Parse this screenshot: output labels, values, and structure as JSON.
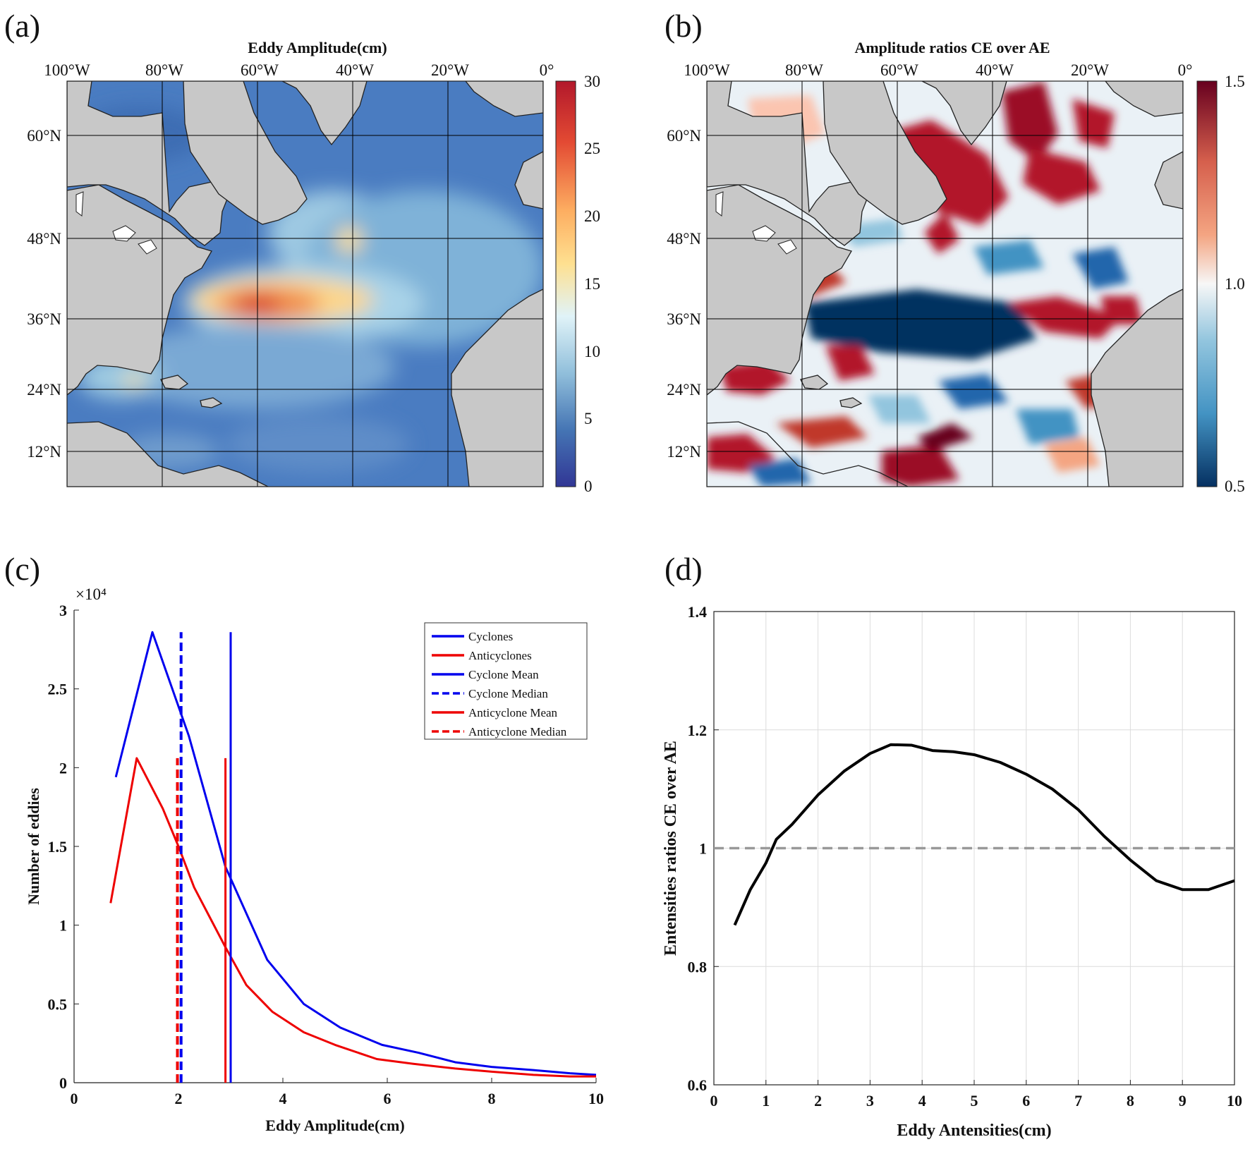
{
  "panels": {
    "a": {
      "label": "(a)",
      "title": "Eddy Amplitude(cm)",
      "lon_ticks": [
        "100°W",
        "80°W",
        "60°W",
        "40°W",
        "20°W",
        "0°"
      ],
      "lat_ticks": [
        "60°N",
        "48°N",
        "36°N",
        "24°N",
        "12°N"
      ],
      "colorbar_ticks": [
        "30",
        "25",
        "20",
        "15",
        "10",
        "5",
        "0"
      ],
      "colorbar_colors": [
        "#b2182b",
        "#e34a33",
        "#fdae61",
        "#fee090",
        "#e0f3f8",
        "#91bfdb",
        "#4575b4",
        "#313695"
      ]
    },
    "b": {
      "label": "(b)",
      "title": "Amplitude ratios CE over AE",
      "lon_ticks": [
        "100°W",
        "80°W",
        "60°W",
        "40°W",
        "20°W",
        "0°"
      ],
      "lat_ticks": [
        "60°N",
        "48°N",
        "36°N",
        "24°N",
        "12°N"
      ],
      "colorbar_ticks": [
        "1.5",
        "1.0",
        "0.5"
      ],
      "colorbar_colors": [
        "#67001f",
        "#d6604d",
        "#f4a582",
        "#f7f7f7",
        "#92c5de",
        "#4393c3",
        "#053061"
      ]
    },
    "c": {
      "label": "(c)"
    },
    "d": {
      "label": "(d)"
    }
  },
  "chart_data": [
    {
      "id": "c",
      "type": "line",
      "xlabel": "Eddy Amplitude(cm)",
      "ylabel": "Number of eddies",
      "exponent": "×10⁴",
      "xlim": [
        0,
        10
      ],
      "ylim": [
        0,
        3
      ],
      "xticks": [
        "0",
        "2",
        "4",
        "6",
        "8",
        "10"
      ],
      "yticks": [
        "0",
        "0.5",
        "1",
        "1.5",
        "2",
        "2.5",
        "3"
      ],
      "series": [
        {
          "name": "Cyclones",
          "color": "#0000ee",
          "x": [
            0.8,
            1.5,
            2.2,
            2.9,
            3.7,
            4.4,
            5.1,
            5.9,
            6.6,
            7.3,
            8.0,
            8.8,
            9.5,
            10.0
          ],
          "y": [
            1.94,
            2.86,
            2.2,
            1.37,
            0.78,
            0.5,
            0.35,
            0.24,
            0.19,
            0.13,
            0.1,
            0.08,
            0.06,
            0.05
          ]
        },
        {
          "name": "Anticyclones",
          "color": "#ee0000",
          "x": [
            0.7,
            1.2,
            1.7,
            2.0,
            2.3,
            2.6,
            2.9,
            3.3,
            3.8,
            4.4,
            5.0,
            5.8,
            6.5,
            7.3,
            8.0,
            8.8,
            9.5,
            10.0
          ],
          "y": [
            1.14,
            2.06,
            1.74,
            1.5,
            1.24,
            1.05,
            0.86,
            0.62,
            0.45,
            0.32,
            0.24,
            0.15,
            0.12,
            0.09,
            0.07,
            0.05,
            0.04,
            0.04
          ]
        }
      ],
      "vlines": [
        {
          "name": "Cyclone Mean",
          "x": 3.0,
          "y_top": 2.86,
          "color": "#0000ee",
          "dashed": false
        },
        {
          "name": "Cyclone Median",
          "x": 2.05,
          "y_top": 2.86,
          "color": "#0000ee",
          "dashed": true
        },
        {
          "name": "Anticyclone Mean",
          "x": 2.9,
          "y_top": 2.06,
          "color": "#ee0000",
          "dashed": false
        },
        {
          "name": "Anticyclone Median",
          "x": 1.98,
          "y_top": 2.06,
          "color": "#ee0000",
          "dashed": true
        }
      ],
      "legend": [
        "Cyclones",
        "Anticyclones",
        "Cyclone Mean",
        "Cyclone Median",
        "Anticyclone Mean",
        "Anticyclone Median"
      ]
    },
    {
      "id": "d",
      "type": "line",
      "xlabel": "Eddy Antensities(cm)",
      "ylabel": "Entensities ratios CE over AE",
      "xlim": [
        0,
        10
      ],
      "ylim": [
        0.6,
        1.4
      ],
      "xticks": [
        "0",
        "1",
        "2",
        "3",
        "4",
        "5",
        "6",
        "7",
        "8",
        "9",
        "10"
      ],
      "yticks": [
        "0.6",
        "0.8",
        "1",
        "1.2",
        "1.4"
      ],
      "grid": true,
      "reference": {
        "y": 1.0,
        "color": "#999999",
        "dashed": true
      },
      "series": [
        {
          "name": "ratio",
          "color": "#000000",
          "x": [
            0.4,
            0.7,
            1.0,
            1.2,
            1.5,
            2.0,
            2.5,
            3.0,
            3.4,
            3.8,
            4.2,
            4.6,
            5.0,
            5.5,
            6.0,
            6.5,
            7.0,
            7.5,
            8.0,
            8.5,
            9.0,
            9.5,
            10.0
          ],
          "y": [
            0.87,
            0.93,
            0.975,
            1.015,
            1.04,
            1.09,
            1.13,
            1.16,
            1.175,
            1.174,
            1.165,
            1.163,
            1.158,
            1.145,
            1.125,
            1.1,
            1.065,
            1.02,
            0.98,
            0.945,
            0.93,
            0.93,
            0.945
          ]
        }
      ]
    }
  ]
}
